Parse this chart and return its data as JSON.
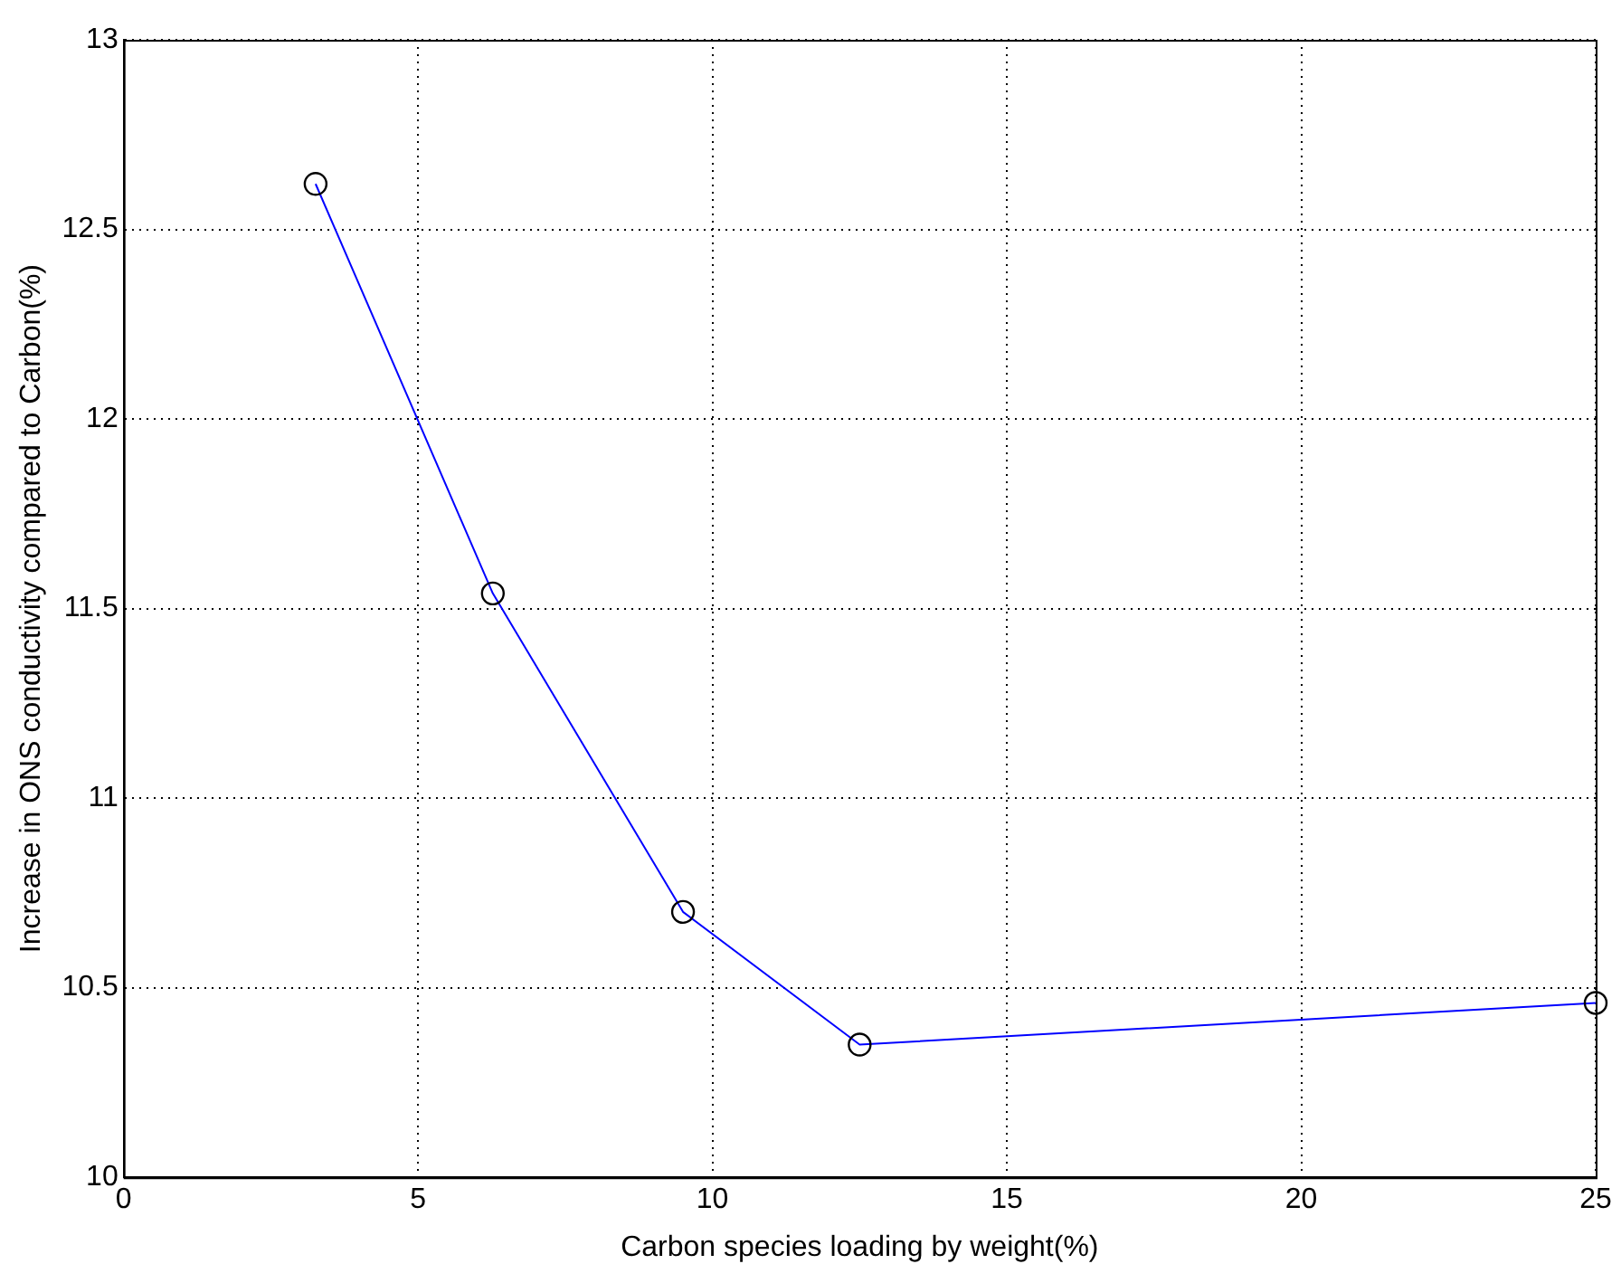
{
  "chart_data": {
    "type": "line",
    "xlabel": "Carbon species loading by weight(%)",
    "ylabel": "Increase in ONS conductivity compared to Carbon(%)",
    "x": [
      3.26,
      6.27,
      9.5,
      12.5,
      25
    ],
    "series": [
      {
        "color": "#0000ff",
        "values": [
          12.62,
          11.54,
          10.7,
          10.35,
          10.46
        ]
      }
    ],
    "xlim": [
      0,
      25
    ],
    "xticks": [
      0,
      5,
      10,
      15,
      20,
      25
    ],
    "ylim": [
      10,
      13
    ],
    "yticks": [
      10,
      10.5,
      11,
      11.5,
      12,
      12.5,
      13
    ],
    "grid": true,
    "marker": "circle",
    "line_style": "solid",
    "legend": false
  }
}
